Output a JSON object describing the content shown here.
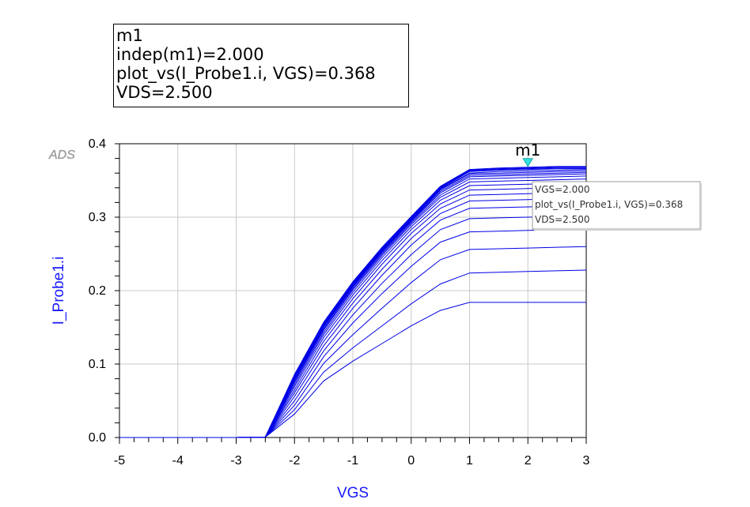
{
  "marker_box": {
    "lines": [
      "m1",
      "indep(m1)=2.000",
      "plot_vs(I_Probe1.i, VGS)=0.368",
      "VDS=2.500"
    ]
  },
  "watermark": "ADS",
  "marker": {
    "label": "m1",
    "x": 2.0,
    "y": 0.368,
    "tooltip": [
      "VGS=2.000",
      "plot_vs(I_Probe1.i, VGS)=0.368",
      "VDS=2.500"
    ]
  },
  "colors": {
    "series": "#0000e6",
    "axis_label": "#1a1aff",
    "marker": "#33e0e0",
    "grid": "#c8c8c8"
  },
  "chart_data": {
    "type": "line",
    "xlabel": "VGS",
    "ylabel": "I_Probe1.i",
    "xlim": [
      -5,
      3
    ],
    "ylim": [
      0,
      0.4
    ],
    "xticks": [
      -5,
      -4,
      -3,
      -2,
      -1,
      0,
      1,
      2,
      3
    ],
    "yticks": [
      0.0,
      0.1,
      0.2,
      0.3,
      0.4
    ],
    "xtick_labels": [
      "-5",
      "-4",
      "-3",
      "-2",
      "-1",
      "0",
      "1",
      "2",
      "3"
    ],
    "ytick_labels": [
      "0.0",
      "0.1",
      "0.2",
      "0.3",
      "0.4"
    ],
    "grid": true,
    "x": [
      -5,
      -4.5,
      -4,
      -3.5,
      -3,
      -2.5,
      -2,
      -1.5,
      -1,
      -0.5,
      0,
      0.5,
      1,
      1.5,
      2,
      2.5,
      3
    ],
    "series": [
      {
        "values": [
          0,
          0,
          0,
          0,
          0,
          0.0005,
          0.032,
          0.077,
          0.104,
          0.128,
          0.152,
          0.173,
          0.184,
          0.184,
          0.184,
          0.184,
          0.184
        ]
      },
      {
        "values": [
          0,
          0,
          0,
          0,
          0,
          0.0005,
          0.038,
          0.089,
          0.122,
          0.152,
          0.182,
          0.209,
          0.224,
          0.225,
          0.226,
          0.227,
          0.228
        ]
      },
      {
        "values": [
          0,
          0,
          0,
          0,
          0,
          0.0005,
          0.044,
          0.101,
          0.14,
          0.176,
          0.211,
          0.242,
          0.256,
          0.257,
          0.258,
          0.259,
          0.26
        ]
      },
      {
        "values": [
          0,
          0,
          0,
          0,
          0,
          0.0005,
          0.05,
          0.11,
          0.156,
          0.196,
          0.233,
          0.266,
          0.28,
          0.281,
          0.282,
          0.283,
          0.284
        ]
      },
      {
        "values": [
          0,
          0,
          0,
          0,
          0,
          0.0005,
          0.056,
          0.118,
          0.167,
          0.21,
          0.249,
          0.283,
          0.298,
          0.299,
          0.3,
          0.301,
          0.302
        ]
      },
      {
        "values": [
          0,
          0,
          0,
          0,
          0,
          0.0005,
          0.061,
          0.125,
          0.176,
          0.221,
          0.262,
          0.296,
          0.312,
          0.313,
          0.314,
          0.315,
          0.316
        ]
      },
      {
        "values": [
          0,
          0,
          0,
          0,
          0,
          0.0005,
          0.065,
          0.131,
          0.183,
          0.229,
          0.271,
          0.305,
          0.322,
          0.323,
          0.324,
          0.325,
          0.326
        ]
      },
      {
        "values": [
          0,
          0,
          0,
          0,
          0,
          0.0005,
          0.069,
          0.136,
          0.189,
          0.236,
          0.278,
          0.312,
          0.33,
          0.331,
          0.332,
          0.333,
          0.334
        ]
      },
      {
        "values": [
          0,
          0,
          0,
          0,
          0,
          0.0005,
          0.072,
          0.14,
          0.194,
          0.241,
          0.283,
          0.318,
          0.337,
          0.338,
          0.339,
          0.34,
          0.341
        ]
      },
      {
        "values": [
          0,
          0,
          0,
          0,
          0,
          0.0005,
          0.075,
          0.143,
          0.198,
          0.245,
          0.287,
          0.323,
          0.343,
          0.344,
          0.345,
          0.346,
          0.347
        ]
      },
      {
        "values": [
          0,
          0,
          0,
          0,
          0,
          0.0005,
          0.077,
          0.146,
          0.201,
          0.248,
          0.29,
          0.327,
          0.348,
          0.349,
          0.35,
          0.351,
          0.352
        ]
      },
      {
        "values": [
          0,
          0,
          0,
          0,
          0,
          0.0005,
          0.079,
          0.148,
          0.203,
          0.25,
          0.292,
          0.33,
          0.352,
          0.353,
          0.354,
          0.355,
          0.356
        ]
      },
      {
        "values": [
          0,
          0,
          0,
          0,
          0,
          0.0005,
          0.08,
          0.15,
          0.205,
          0.252,
          0.294,
          0.333,
          0.355,
          0.356,
          0.357,
          0.358,
          0.359
        ]
      },
      {
        "values": [
          0,
          0,
          0,
          0,
          0,
          0.0005,
          0.081,
          0.151,
          0.206,
          0.253,
          0.295,
          0.335,
          0.357,
          0.358,
          0.359,
          0.36,
          0.361
        ]
      },
      {
        "values": [
          0,
          0,
          0,
          0,
          0,
          0.0005,
          0.082,
          0.152,
          0.207,
          0.254,
          0.296,
          0.337,
          0.359,
          0.36,
          0.361,
          0.362,
          0.363
        ]
      },
      {
        "values": [
          0,
          0,
          0,
          0,
          0,
          0.0005,
          0.083,
          0.153,
          0.208,
          0.255,
          0.297,
          0.338,
          0.36,
          0.362,
          0.363,
          0.364,
          0.365
        ]
      },
      {
        "values": [
          0,
          0,
          0,
          0,
          0,
          0.0005,
          0.084,
          0.154,
          0.209,
          0.256,
          0.298,
          0.339,
          0.362,
          0.364,
          0.365,
          0.366,
          0.366
        ]
      },
      {
        "values": [
          0,
          0,
          0,
          0,
          0,
          0.0005,
          0.085,
          0.155,
          0.21,
          0.257,
          0.299,
          0.34,
          0.363,
          0.365,
          0.366,
          0.367,
          0.367
        ]
      },
      {
        "values": [
          0,
          0,
          0,
          0,
          0,
          0.0005,
          0.085,
          0.156,
          0.211,
          0.258,
          0.3,
          0.341,
          0.364,
          0.366,
          0.367,
          0.368,
          0.368
        ]
      },
      {
        "values": [
          0,
          0,
          0,
          0,
          0,
          0.0005,
          0.086,
          0.157,
          0.212,
          0.259,
          0.301,
          0.342,
          0.365,
          0.367,
          0.368,
          0.369,
          0.369
        ]
      }
    ]
  }
}
